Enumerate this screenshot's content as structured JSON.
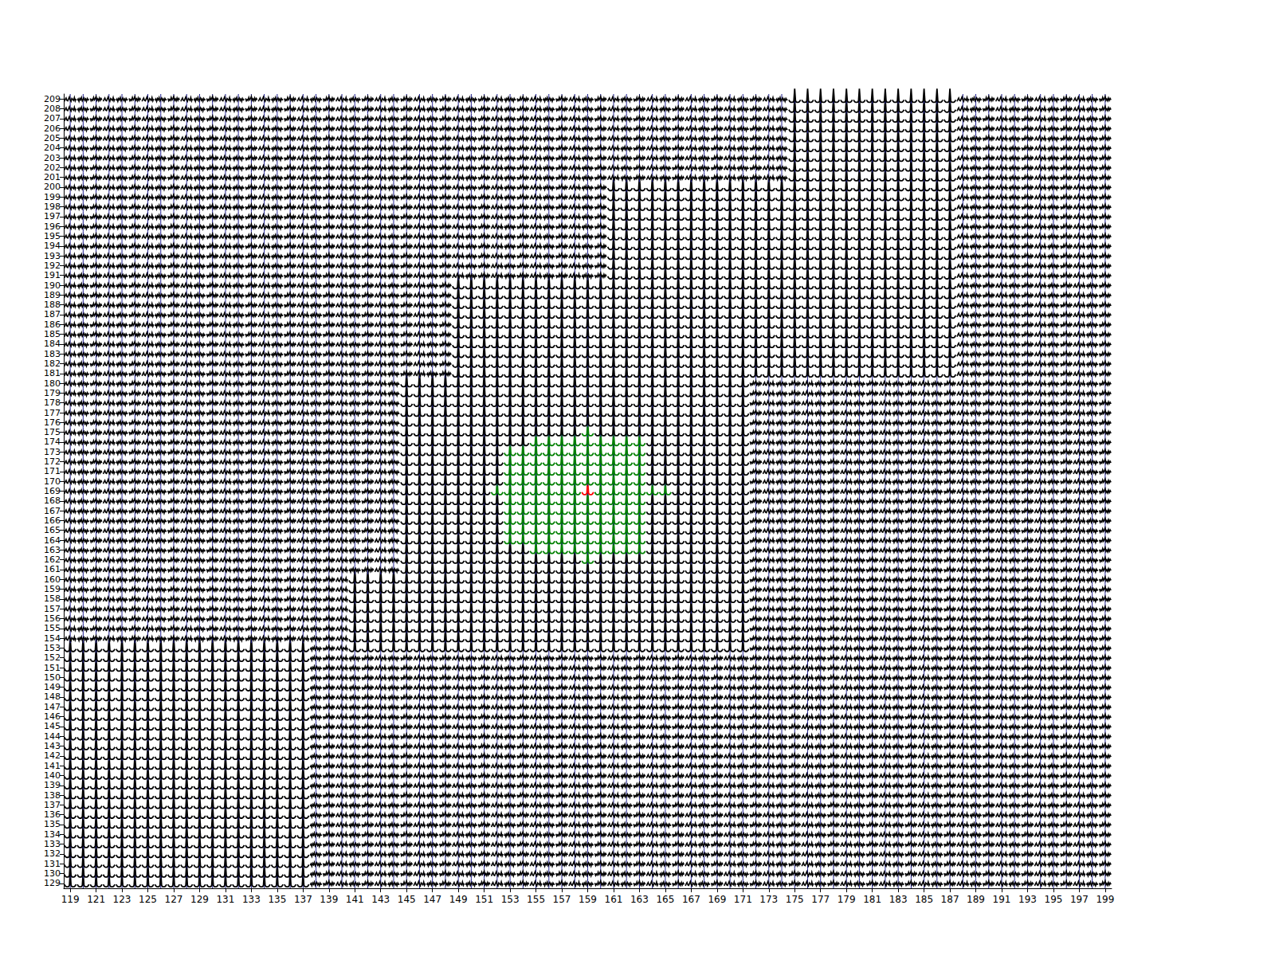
{
  "chart_data": {
    "type": "spectral_grid",
    "color": "#000000",
    "xlim": [
      118.5,
      199.5
    ],
    "ylim": [
      128.5,
      209.5
    ],
    "xticks": [
      119,
      121,
      123,
      125,
      127,
      129,
      131,
      133,
      135,
      137,
      139,
      141,
      143,
      145,
      147,
      149,
      151,
      153,
      155,
      157,
      159,
      161,
      163,
      165,
      167,
      169,
      171,
      173,
      175,
      177,
      179,
      181,
      183,
      185,
      187,
      189,
      191,
      193,
      195,
      197,
      199
    ],
    "yticks": [
      129,
      130,
      131,
      132,
      133,
      134,
      135,
      136,
      137,
      138,
      139,
      140,
      141,
      142,
      143,
      144,
      145,
      146,
      147,
      148,
      149,
      150,
      151,
      152,
      153,
      154,
      155,
      156,
      157,
      158,
      159,
      160,
      161,
      162,
      163,
      164,
      165,
      166,
      167,
      168,
      169,
      170,
      171,
      172,
      173,
      174,
      175,
      176,
      177,
      178,
      179,
      180,
      181,
      182,
      183,
      184,
      185,
      186,
      187,
      188,
      189,
      190,
      191,
      192,
      193,
      194,
      195,
      196,
      197,
      198,
      199,
      200,
      201,
      202,
      203,
      204,
      205,
      206,
      207,
      208,
      209
    ],
    "traces": {
      "line_profile": [
        0.35,
        0.2,
        0.12,
        0.1,
        0.1,
        0.12,
        0.25,
        1.5,
        0.25,
        0.12,
        0.1,
        0.1,
        0.12,
        0.2,
        0.35
      ],
      "noise_profiles": [
        [
          0.3,
          0.45,
          0.2,
          0.5,
          0.35,
          0.6,
          0.25,
          0.4,
          0.55,
          0.3,
          0.45,
          0.2,
          0.5,
          0.35,
          0.4
        ],
        [
          0.5,
          0.25,
          0.4,
          0.3,
          0.6,
          0.35,
          0.5,
          0.7,
          0.3,
          0.45,
          0.25,
          0.55,
          0.3,
          0.5,
          0.35
        ],
        [
          0.2,
          0.4,
          0.55,
          0.3,
          0.25,
          0.45,
          0.65,
          0.35,
          0.2,
          0.5,
          0.4,
          0.3,
          0.6,
          0.25,
          0.45
        ]
      ]
    },
    "line_regions": [
      {
        "x": [
          119,
          137
        ],
        "y": [
          129,
          153
        ]
      },
      {
        "x": [
          141,
          171
        ],
        "y": [
          153,
          160
        ]
      },
      {
        "x": [
          145,
          171
        ],
        "y": [
          161,
          180
        ]
      },
      {
        "x": [
          149,
          187
        ],
        "y": [
          181,
          190
        ]
      },
      {
        "x": [
          161,
          187
        ],
        "y": [
          191,
          200
        ]
      },
      {
        "x": [
          175,
          187
        ],
        "y": [
          201,
          209
        ]
      }
    ],
    "selected": {
      "color": "#008000",
      "regions": [
        {
          "x": [
            159,
            159
          ],
          "y": [
            162,
            162
          ]
        },
        {
          "x": [
            155,
            163
          ],
          "y": [
            163,
            163
          ]
        },
        {
          "x": [
            153,
            163
          ],
          "y": [
            164,
            168
          ]
        },
        {
          "x": [
            152,
            165
          ],
          "y": [
            169,
            169
          ]
        },
        {
          "x": [
            153,
            163
          ],
          "y": [
            170,
            173
          ]
        },
        {
          "x": [
            155,
            163
          ],
          "y": [
            174,
            174
          ]
        },
        {
          "x": [
            159,
            159
          ],
          "y": [
            175,
            175
          ]
        }
      ]
    },
    "marked": {
      "color": "#ff0000",
      "x": 159,
      "y": 169
    }
  }
}
